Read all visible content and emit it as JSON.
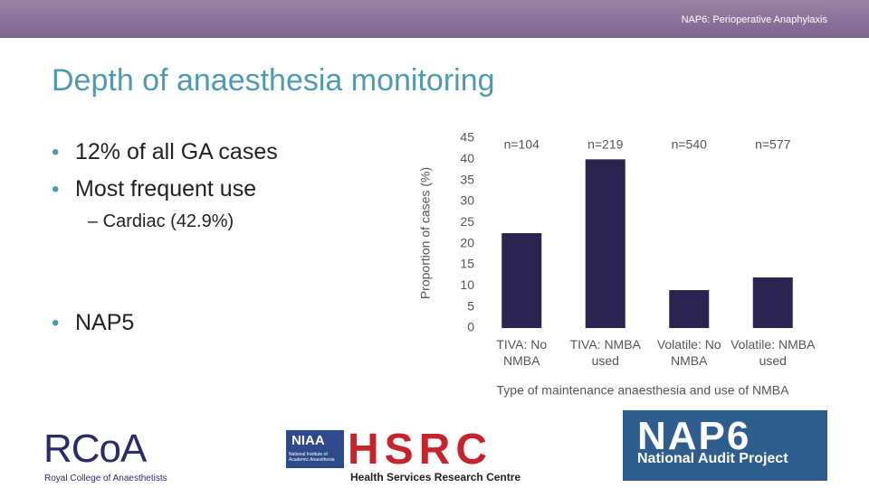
{
  "header": {
    "text": "NAP6: Perioperative Anaphylaxis"
  },
  "title": "Depth of anaesthesia monitoring",
  "bullets": [
    "12% of all GA cases",
    "Most frequent use"
  ],
  "sub_bullet": "– Cardiac (42.9%)",
  "bullet_last": "NAP5",
  "chart_data": {
    "type": "bar",
    "categories": [
      "TIVA: No NMBA",
      "TIVA: NMBA used",
      "Volatile: No NMBA",
      "Volatile: NMBA used"
    ],
    "values": [
      22.5,
      40,
      9,
      12
    ],
    "annotations": [
      "n=104",
      "n=219",
      "n=540",
      "n=577"
    ],
    "color": "#2b2350",
    "ylim": [
      0,
      45
    ],
    "yticks": [
      0,
      5,
      10,
      15,
      20,
      25,
      30,
      35,
      40,
      45
    ],
    "ylabel": "Proportion of cases (%)",
    "xlabel": "Type of maintenance anaesthesia and use of NMBA",
    "grid": false
  },
  "logos": {
    "rcoa": {
      "mark": "RCoA",
      "name": "Royal College of Anaesthetists"
    },
    "niaa": {
      "mark": "NIAA",
      "name": "National Institute of Academic Anaesthesia"
    },
    "hsrc": {
      "mark": "HSRC",
      "name": "Health Services Research Centre"
    },
    "nap6": {
      "mark": "NAP6",
      "name": "National Audit Project"
    }
  }
}
